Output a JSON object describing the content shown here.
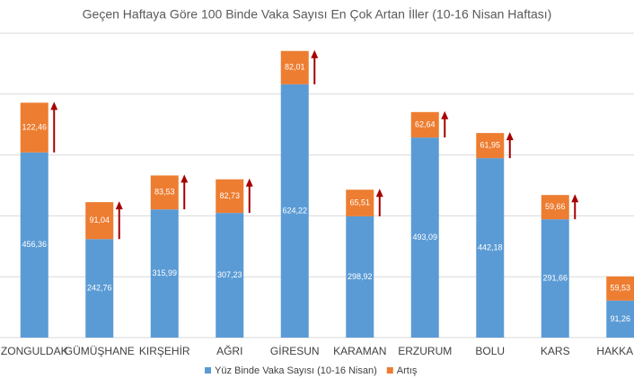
{
  "chart_data": {
    "type": "stacked-bar",
    "title": "Geçen Haftaya Göre 100 Binde Vaka Sayısı En Çok Artan İller (10-16 Nisan Haftası)",
    "categories": [
      "ZONGULDAK",
      "GÜMÜŞHANE",
      "KIRŞEHİR",
      "AĞRI",
      "GİRESUN",
      "KARAMAN",
      "ERZURUM",
      "BOLU",
      "KARS",
      "HAKKARİ"
    ],
    "series": [
      {
        "name": "Yüz Binde Vaka Sayısı (10-16 Nisan)",
        "color": "#5b9bd5",
        "values": [
          456.36,
          242.76,
          315.99,
          307.23,
          624.22,
          298.92,
          493.09,
          442.18,
          291.66,
          91.26
        ],
        "value_labels": [
          "456,36",
          "242,76",
          "315,99",
          "307,23",
          "624,22",
          "298,92",
          "493,09",
          "442,18",
          "291,66",
          "91,26"
        ]
      },
      {
        "name": "Artış",
        "color": "#ed7d31",
        "values": [
          122.46,
          91.04,
          83.53,
          82.73,
          82.01,
          65.51,
          62.64,
          61.95,
          59.66,
          59.53
        ],
        "value_labels": [
          "122,46",
          "91,04",
          "83,53",
          "82,73",
          "82,01",
          "65,51",
          "62,64",
          "61,95",
          "59,66",
          "59,53"
        ]
      }
    ],
    "ylim": [
      0,
      750
    ],
    "yticks": [
      0,
      150,
      300,
      450,
      600,
      750
    ],
    "grid": true,
    "legend": "bottom"
  }
}
